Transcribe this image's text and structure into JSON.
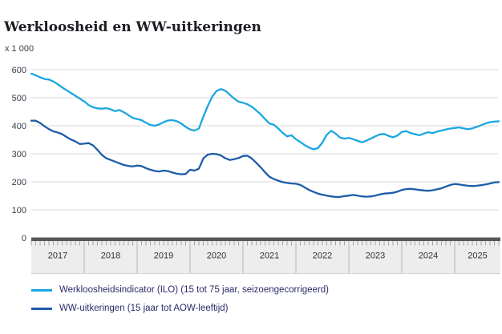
{
  "page": {
    "title": "Werkloosheid en WW-uitkeringen",
    "unit_label": "x 1 000"
  },
  "colors": {
    "series_ilo": "#1aa7e0",
    "series_ww": "#1d5ca9",
    "gridline": "#d9d9d9",
    "axis_bar": "#58585a",
    "axis_band": "#ededed",
    "tick": "#a8a8a8",
    "year_divider": "#b5b5b5",
    "text": "#3c3c4c",
    "legend_text": "#2b2b6a"
  },
  "chart_data": {
    "type": "line",
    "title": "Werkloosheid en WW-uitkeringen",
    "ylabel": "x 1 000",
    "xlabel": "",
    "x_unit": "month",
    "x_start": "2017-01",
    "x_end": "2025-11",
    "ylim": [
      0,
      600
    ],
    "y_ticks": [
      0,
      100,
      200,
      300,
      400,
      500,
      600
    ],
    "year_labels": [
      "2017",
      "2018",
      "2019",
      "2020",
      "2021",
      "2022",
      "2023",
      "2024",
      "2025"
    ],
    "grid": "horizontal",
    "legend_position": "bottom",
    "series": [
      {
        "name": "Werkloosheidsindicator (ILO) (15 tot 75 jaar, seizoengecorrigeerd)",
        "color": "#1aa7e0",
        "values": [
          586,
          580,
          573,
          567,
          565,
          558,
          548,
          537,
          527,
          517,
          507,
          497,
          487,
          474,
          466,
          462,
          461,
          463,
          459,
          452,
          456,
          448,
          438,
          428,
          424,
          420,
          411,
          403,
          400,
          405,
          413,
          419,
          420,
          416,
          408,
          396,
          387,
          383,
          390,
          432,
          470,
          503,
          524,
          531,
          525,
          511,
          497,
          486,
          482,
          477,
          468,
          455,
          441,
          424,
          408,
          404,
          390,
          375,
          362,
          366,
          352,
          342,
          331,
          322,
          316,
          320,
          340,
          368,
          382,
          372,
          358,
          354,
          357,
          352,
          346,
          341,
          347,
          355,
          362,
          369,
          371,
          364,
          359,
          365,
          378,
          381,
          374,
          370,
          366,
          372,
          377,
          374,
          379,
          383,
          387,
          390,
          392,
          394,
          391,
          388,
          391,
          396,
          402,
          408,
          413,
          415,
          416
        ]
      },
      {
        "name": "WW-uitkeringen (15 jaar tot AOW-leeftijd)",
        "color": "#1d5ca9",
        "values": [
          418,
          418,
          410,
          398,
          388,
          380,
          376,
          370,
          360,
          351,
          344,
          335,
          336,
          338,
          330,
          314,
          296,
          284,
          278,
          272,
          266,
          260,
          257,
          255,
          258,
          256,
          249,
          243,
          239,
          237,
          240,
          238,
          233,
          229,
          227,
          228,
          243,
          240,
          247,
          283,
          297,
          300,
          299,
          294,
          284,
          278,
          281,
          285,
          292,
          293,
          283,
          268,
          252,
          234,
          218,
          210,
          204,
          199,
          196,
          194,
          193,
          189,
          180,
          171,
          164,
          158,
          154,
          151,
          148,
          146,
          146,
          149,
          151,
          153,
          151,
          148,
          147,
          148,
          151,
          155,
          158,
          159,
          161,
          165,
          171,
          174,
          175,
          173,
          171,
          169,
          168,
          170,
          173,
          177,
          183,
          189,
          192,
          191,
          188,
          186,
          185,
          186,
          188,
          191,
          194,
          198,
          199
        ]
      }
    ]
  }
}
